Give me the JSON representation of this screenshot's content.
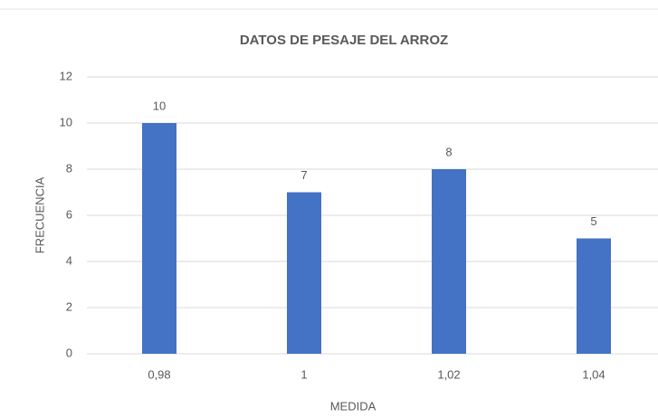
{
  "chart_data": {
    "type": "bar",
    "title": "DATOS DE PESAJE DEL ARROZ",
    "x_label": "MEDIDA",
    "y_label": "FRECUENCIA",
    "categories": [
      "0,98",
      "1",
      "1,02",
      "1,04"
    ],
    "values": [
      10,
      7,
      8,
      5
    ],
    "color": "#4472c4",
    "ylim": [
      0,
      12
    ],
    "yticks": [
      0,
      2,
      4,
      6,
      8,
      10,
      12
    ],
    "grid": true,
    "data_labels": true
  }
}
